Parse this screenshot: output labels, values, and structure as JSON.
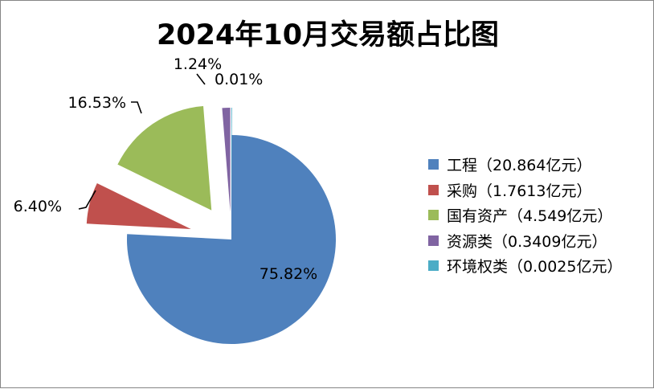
{
  "chart_data": {
    "type": "pie",
    "title": "2024年10月交易额占比图",
    "legend_position": "right",
    "slices": [
      {
        "legend": "工程（20.864亿元）",
        "label": "75.82%",
        "percent": 75.82,
        "color": "#4F81BD"
      },
      {
        "legend": "采购（1.7613亿元）",
        "label": "6.40%",
        "percent": 6.4,
        "color": "#C0504D"
      },
      {
        "legend": "国有资产（4.549亿元）",
        "label": "16.53%",
        "percent": 16.53,
        "color": "#9BBB59"
      },
      {
        "legend": "资源类（0.3409亿元）",
        "label": "1.24%",
        "percent": 1.24,
        "color": "#8064A2"
      },
      {
        "legend": "环境权类（0.0025亿元）",
        "label": "0.01%",
        "percent": 0.01,
        "color": "#4BACC6"
      }
    ]
  }
}
